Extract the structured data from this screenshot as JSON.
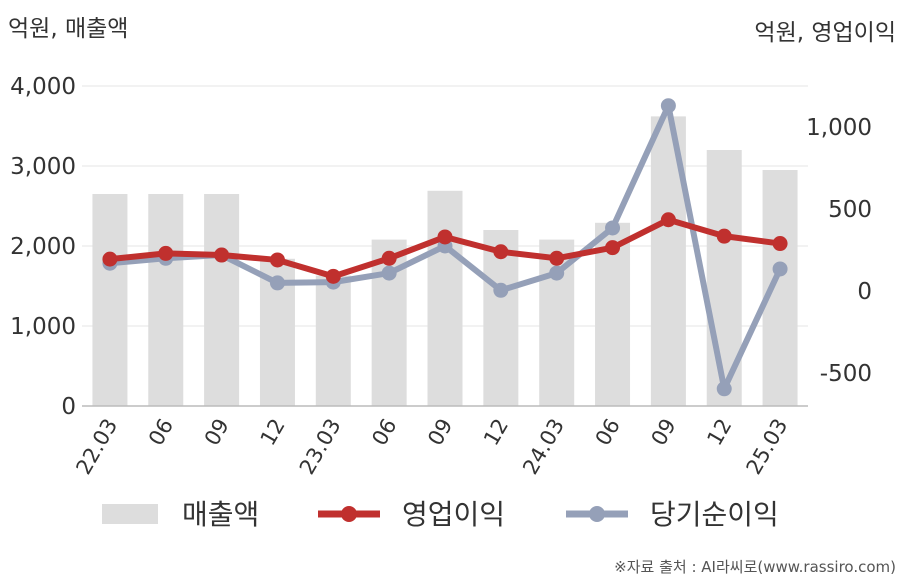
{
  "chart_data": {
    "type": "bar+line",
    "categories": [
      "22.03",
      "06",
      "09",
      "12",
      "23.03",
      "06",
      "09",
      "12",
      "24.03",
      "06",
      "09",
      "12",
      "25.03"
    ],
    "left_axis": {
      "unit_label": "억원, 매출액",
      "ylim": [
        0,
        4000
      ],
      "ticks": [
        "0",
        "1,000",
        "2,000",
        "3,000",
        "4,000"
      ]
    },
    "right_axis": {
      "unit_label": "억원, 영업이익",
      "ylim": [
        -700,
        1250
      ],
      "ticks": [
        "-500",
        "0",
        "500",
        "1,000"
      ]
    },
    "series": [
      {
        "name": "매출액",
        "kind": "bar",
        "axis": "left",
        "color": "#dddddd",
        "values": [
          2650,
          2650,
          2650,
          1840,
          1630,
          2080,
          2690,
          2200,
          2080,
          2290,
          3620,
          3200,
          2950
        ]
      },
      {
        "name": "영업이익",
        "kind": "line",
        "axis": "right",
        "color": "#c0302e",
        "values": [
          195,
          230,
          220,
          190,
          90,
          200,
          330,
          240,
          200,
          265,
          435,
          335,
          290
        ]
      },
      {
        "name": "당기순이익",
        "kind": "line",
        "axis": "right",
        "color": "#95a0b8",
        "values": [
          170,
          200,
          220,
          50,
          55,
          110,
          275,
          5,
          110,
          385,
          1130,
          -595,
          135
        ]
      }
    ],
    "grid": true,
    "legend_position": "bottom"
  },
  "source": "※자료 출처 : AI라씨로(www.rassiro.com)"
}
